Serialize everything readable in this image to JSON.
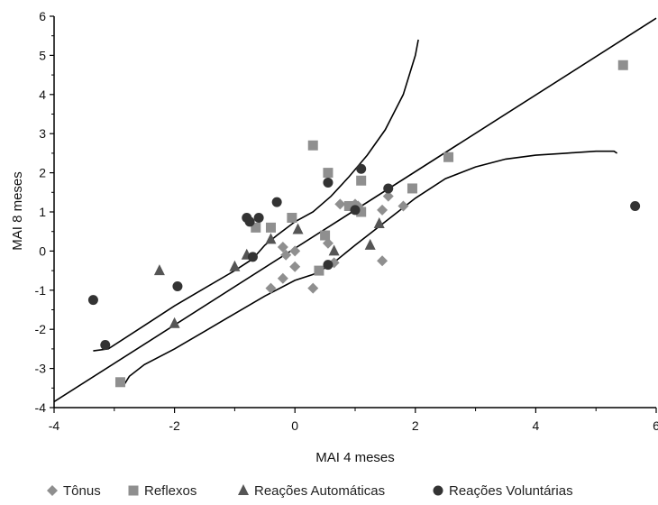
{
  "chart_data": {
    "type": "scatter",
    "title": "",
    "xlabel": "MAI 4 meses",
    "ylabel": "MAI 8 meses",
    "xlim": [
      -4,
      6
    ],
    "ylim": [
      -4,
      6
    ],
    "xticks": [
      -4,
      -2,
      0,
      2,
      4,
      6
    ],
    "yticks": [
      -4,
      -3,
      -2,
      -1,
      0,
      1,
      2,
      3,
      4,
      5,
      6
    ],
    "grid": false,
    "legend_position": "bottom",
    "series": [
      {
        "name": "Tônus",
        "marker": "diamond",
        "color": "#8f8f8f",
        "points": [
          [
            -0.4,
            -0.95
          ],
          [
            -0.2,
            -0.7
          ],
          [
            -0.2,
            0.1
          ],
          [
            -0.15,
            -0.1
          ],
          [
            0,
            -0.4
          ],
          [
            0,
            0
          ],
          [
            0.3,
            -0.95
          ],
          [
            0.55,
            0.2
          ],
          [
            0.65,
            -0.3
          ],
          [
            0.75,
            1.2
          ],
          [
            1.0,
            1.2
          ],
          [
            1.05,
            1.15
          ],
          [
            1.45,
            -0.25
          ],
          [
            1.45,
            1.05
          ],
          [
            1.55,
            1.4
          ],
          [
            1.8,
            1.15
          ]
        ]
      },
      {
        "name": "Reflexos",
        "marker": "square",
        "color": "#8f8f8f",
        "points": [
          [
            -2.9,
            -3.35
          ],
          [
            -0.65,
            0.6
          ],
          [
            -0.4,
            0.6
          ],
          [
            -0.05,
            0.85
          ],
          [
            0.3,
            2.7
          ],
          [
            0.4,
            -0.5
          ],
          [
            0.5,
            0.4
          ],
          [
            0.55,
            2.0
          ],
          [
            0.9,
            1.15
          ],
          [
            1.1,
            1.8
          ],
          [
            1.1,
            1.0
          ],
          [
            1.95,
            1.6
          ],
          [
            2.55,
            2.4
          ],
          [
            5.45,
            4.75
          ]
        ]
      },
      {
        "name": "Reações Automáticas",
        "marker": "triangle",
        "color": "#555555",
        "points": [
          [
            -2.25,
            -0.5
          ],
          [
            -2.0,
            -1.85
          ],
          [
            -1.0,
            -0.4
          ],
          [
            -0.8,
            -0.1
          ],
          [
            -0.4,
            0.3
          ],
          [
            0.05,
            0.55
          ],
          [
            0.65,
            0.0
          ],
          [
            1.25,
            0.15
          ],
          [
            1.4,
            0.7
          ]
        ]
      },
      {
        "name": "Reações Voluntárias",
        "marker": "circle",
        "color": "#333333",
        "points": [
          [
            -3.35,
            -1.25
          ],
          [
            -3.15,
            -2.4
          ],
          [
            -1.95,
            -0.9
          ],
          [
            -0.8,
            0.85
          ],
          [
            -0.75,
            0.75
          ],
          [
            -0.7,
            -0.15
          ],
          [
            -0.6,
            0.85
          ],
          [
            -0.3,
            1.25
          ],
          [
            0.55,
            1.75
          ],
          [
            0.55,
            -0.35
          ],
          [
            1.0,
            1.05
          ],
          [
            1.1,
            2.1
          ],
          [
            1.55,
            1.6
          ],
          [
            5.65,
            1.15
          ]
        ]
      }
    ],
    "lines": [
      {
        "name": "regression",
        "points": [
          [
            -4,
            -3.85
          ],
          [
            6,
            5.95
          ]
        ]
      },
      {
        "name": "upper-band",
        "points": [
          [
            -3.35,
            -2.55
          ],
          [
            -3.1,
            -2.5
          ],
          [
            -2.5,
            -1.9
          ],
          [
            -2.0,
            -1.4
          ],
          [
            -1.5,
            -0.95
          ],
          [
            -1.0,
            -0.5
          ],
          [
            -0.7,
            -0.2
          ],
          [
            -0.5,
            0.15
          ],
          [
            -0.3,
            0.4
          ],
          [
            0.0,
            0.75
          ],
          [
            0.3,
            1.0
          ],
          [
            0.6,
            1.4
          ],
          [
            0.9,
            1.9
          ],
          [
            1.2,
            2.45
          ],
          [
            1.5,
            3.1
          ],
          [
            1.8,
            4.0
          ],
          [
            2.0,
            5.0
          ],
          [
            2.05,
            5.4
          ]
        ]
      },
      {
        "name": "lower-band",
        "points": [
          [
            -2.85,
            -3.45
          ],
          [
            -2.75,
            -3.2
          ],
          [
            -2.5,
            -2.9
          ],
          [
            -2.0,
            -2.5
          ],
          [
            -1.5,
            -2.05
          ],
          [
            -1.0,
            -1.6
          ],
          [
            -0.5,
            -1.15
          ],
          [
            0.0,
            -0.75
          ],
          [
            0.3,
            -0.6
          ],
          [
            0.6,
            -0.35
          ],
          [
            1.0,
            0.15
          ],
          [
            1.5,
            0.75
          ],
          [
            2.0,
            1.35
          ],
          [
            2.5,
            1.85
          ],
          [
            3.0,
            2.15
          ],
          [
            3.5,
            2.35
          ],
          [
            4.0,
            2.45
          ],
          [
            4.5,
            2.5
          ],
          [
            5.0,
            2.55
          ],
          [
            5.3,
            2.55
          ],
          [
            5.35,
            2.5
          ]
        ]
      }
    ]
  }
}
